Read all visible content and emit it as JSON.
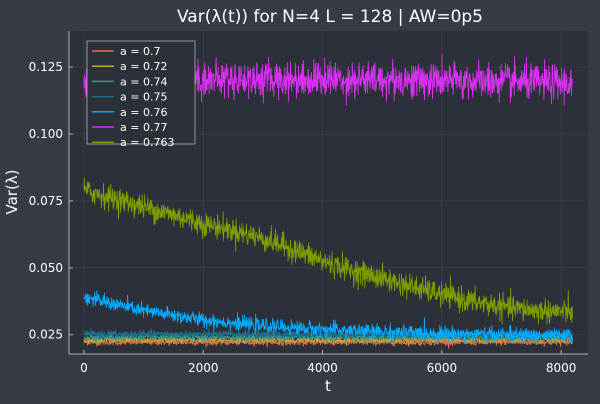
{
  "chart_data": {
    "type": "line",
    "title": "Var(λ(t)) for N=4 L = 128 | AW=0p5",
    "xlabel": "t",
    "ylabel": "Var(λ)",
    "xlim": [
      -250,
      8450
    ],
    "ylim": [
      0.0178,
      0.1385
    ],
    "xticks": [
      0,
      2000,
      4000,
      6000,
      8000
    ],
    "xtick_labels": [
      "0",
      "2000",
      "4000",
      "6000",
      "8000"
    ],
    "yticks": [
      0.025,
      0.05,
      0.075,
      0.1,
      0.125
    ],
    "ytick_labels": [
      "0.025",
      "0.050",
      "0.075",
      "0.100",
      "0.125"
    ],
    "grid": true,
    "legend_position": "top-left",
    "t_range": [
      0,
      8190
    ],
    "series": [
      {
        "name": "a = 0.7",
        "color": "#e26f46",
        "noise": 0.001,
        "x": [
          0,
          8190
        ],
        "y": [
          0.0222,
          0.0222
        ]
      },
      {
        "name": "a = 0.72",
        "color": "#c9a32a",
        "noise": 0.001,
        "x": [
          0,
          8190
        ],
        "y": [
          0.023,
          0.023
        ]
      },
      {
        "name": "a = 0.74",
        "color": "#3a9c8c",
        "noise": 0.0011,
        "x": [
          0,
          8190
        ],
        "y": [
          0.024,
          0.024
        ]
      },
      {
        "name": "a = 0.75",
        "color": "#1f6f8b",
        "noise": 0.0012,
        "x": [
          0,
          8190
        ],
        "y": [
          0.0252,
          0.025
        ]
      },
      {
        "name": "a = 0.76",
        "color": "#00a9ff",
        "noise": 0.0024,
        "x": [
          0,
          1000,
          2000,
          3000,
          4000,
          5000,
          6000,
          7000,
          8190
        ],
        "y": [
          0.039,
          0.034,
          0.0305,
          0.0283,
          0.027,
          0.0262,
          0.0255,
          0.025,
          0.0245
        ]
      },
      {
        "name": "a = 0.77",
        "color": "#d730f0",
        "noise": 0.006,
        "x": [
          0,
          2000,
          4000,
          6000,
          8190
        ],
        "y": [
          0.12,
          0.1205,
          0.1205,
          0.12,
          0.119
        ]
      },
      {
        "name": "a = 0.763",
        "color": "#7a9a00",
        "noise": 0.004,
        "x": [
          0,
          500,
          1000,
          1500,
          2000,
          2500,
          3000,
          3500,
          4000,
          4500,
          5000,
          5500,
          6000,
          6500,
          7000,
          7500,
          8190
        ],
        "y": [
          0.079,
          0.076,
          0.0728,
          0.0698,
          0.0665,
          0.064,
          0.061,
          0.057,
          0.0525,
          0.049,
          0.046,
          0.043,
          0.04,
          0.0375,
          0.0355,
          0.0342,
          0.0335
        ]
      }
    ]
  },
  "colors": {
    "background": "#363b45",
    "plot_area": "#2c3038",
    "grid": "#4a505b",
    "axis": "#aeb3bb",
    "text": "#ffffff"
  }
}
